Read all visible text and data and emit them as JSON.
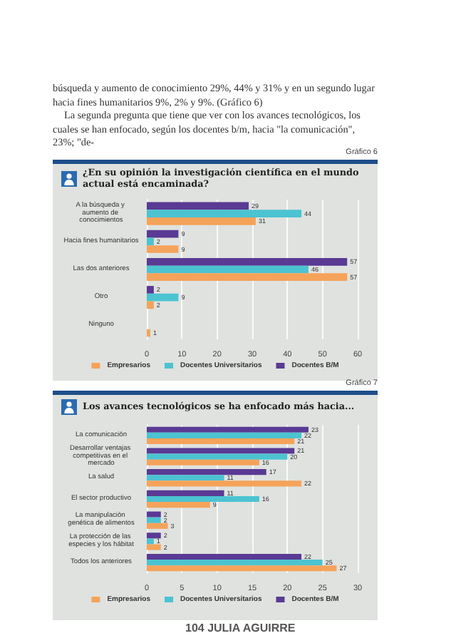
{
  "chart_data": [
    {
      "type": "bar",
      "orientation": "horizontal",
      "title": "¿En su opinión la investigación científica en el mundo actual está encaminada?",
      "subtitle": "Gráfico 6",
      "annotations": [
        "búsqueda y aumento de conocimiento 29%, 44% y 31% y en un segundo lugar hacia fines humanitarios 9%, 2% y 9%.  (Gráfico 6)",
        "La segunda pregunta que tiene que ver con los avances tecnológicos, los cuales se han enfocado, según los docentes b/m, hacia \"la comunicación\", 23%; \"de-"
      ],
      "categories": [
        "A la búsqueda y aumento de conocimientos",
        "Hacia fines humanitarios",
        "Las dos anteriores",
        "Otro",
        "Ninguno"
      ],
      "series": [
        {
          "name": "Empresarios",
          "color": "#f5a35a",
          "values": [
            31,
            9,
            57,
            2,
            1
          ]
        },
        {
          "name": "Docentes Universitarios",
          "color": "#4cc3d1",
          "values": [
            44,
            2,
            46,
            9,
            null
          ]
        },
        {
          "name": "Docentes B/M",
          "color": "#5a3a94",
          "values": [
            29,
            9,
            57,
            2,
            null
          ]
        }
      ],
      "xlim": [
        0,
        60
      ],
      "xticks": [
        0,
        10,
        20,
        30,
        40,
        50,
        60
      ],
      "grid": "x",
      "legend": "bottom",
      "data_labels": true
    },
    {
      "type": "bar",
      "orientation": "horizontal",
      "title": "Los avances tecnológicos se ha enfocado más hacia...",
      "subtitle": "Gráfico 7",
      "annotations": [
        "104 JULIA AGUIRRE"
      ],
      "categories": [
        "La comunicación",
        "Desarrollar ventajas competitivas en el mercado",
        "La salud",
        "El sector productivo",
        "La manipulación genética de alimentos",
        "La protección de las especies y los hábitat",
        "Todos los anteriores"
      ],
      "series": [
        {
          "name": "Empresarios",
          "color": "#f5a35a",
          "values": [
            21,
            16,
            22,
            9,
            3,
            2,
            27
          ]
        },
        {
          "name": "Docentes Universitarios",
          "color": "#4cc3d1",
          "values": [
            22,
            20,
            11,
            16,
            2,
            1,
            25
          ]
        },
        {
          "name": "Docentes B/M",
          "color": "#5a3a94",
          "values": [
            23,
            21,
            17,
            11,
            2,
            2,
            22
          ]
        }
      ],
      "xlim": [
        0,
        30
      ],
      "xticks": [
        0,
        5,
        10,
        15,
        20,
        25,
        30
      ],
      "grid": "x",
      "legend": "bottom",
      "data_labels": true
    }
  ]
}
